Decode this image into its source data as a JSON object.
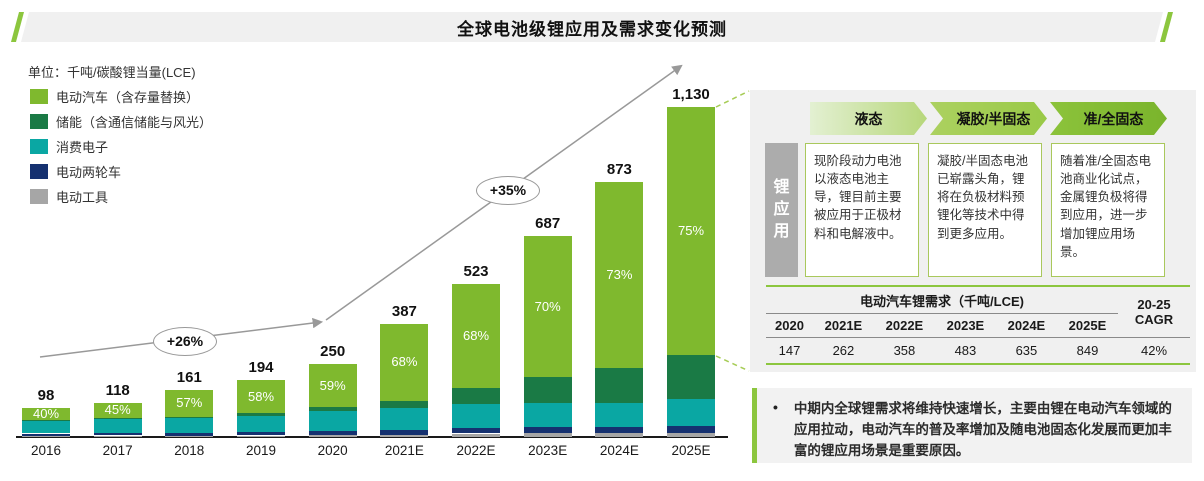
{
  "title": "全球电池级锂应用及需求变化预测",
  "unit_label": "单位：千吨/碳酸锂当量(LCE)",
  "colors": {
    "accent_green": "#8CC63E",
    "arrow_gray": "#999999",
    "panel_gray": "#F0F0F0",
    "ev": "#7FB92E",
    "storage": "#1A7A45",
    "consumer": "#0AA7A3",
    "two_wheeler": "#153170",
    "tools": "#A6A6A6"
  },
  "legend": [
    {
      "label": "电动汽车（含存量替换）",
      "color": "#7FB92E"
    },
    {
      "label": "储能（含通信储能与风光）",
      "color": "#1A7A45"
    },
    {
      "label": "消费电子",
      "color": "#0AA7A3"
    },
    {
      "label": "电动两轮车",
      "color": "#153170"
    },
    {
      "label": "电动工具",
      "color": "#A6A6A6"
    }
  ],
  "chart_data": {
    "type": "bar",
    "stacked": true,
    "title": "全球电池级锂应用及需求变化预测",
    "ylabel": "千吨/碳酸锂当量(LCE)",
    "ylim": [
      0,
      1130
    ],
    "grid": false,
    "categories": [
      "2016",
      "2017",
      "2018",
      "2019",
      "2020",
      "2021E",
      "2022E",
      "2023E",
      "2024E",
      "2025E"
    ],
    "totals": [
      98,
      118,
      161,
      194,
      250,
      387,
      523,
      687,
      873,
      1130
    ],
    "total_labels": [
      "98",
      "118",
      "161",
      "194",
      "250",
      "387",
      "523",
      "687",
      "873",
      "1,130"
    ],
    "ev_share_labels": [
      "40%",
      "45%",
      "57%",
      "58%",
      "59%",
      "68%",
      "68%",
      "70%",
      "73%",
      "75%"
    ],
    "series_note": "series listed bottom-to-top of stack; non-EV values estimated from pixels",
    "series": [
      {
        "name": "电动工具",
        "color": "#A6A6A6",
        "values": [
          5,
          5,
          4,
          5,
          7,
          8,
          12,
          13,
          13,
          15
        ]
      },
      {
        "name": "电动两轮车",
        "color": "#153170",
        "values": [
          7,
          8,
          9,
          11,
          13,
          16,
          20,
          21,
          21,
          23
        ]
      },
      {
        "name": "消费电子",
        "color": "#0AA7A3",
        "values": [
          45,
          49,
          52,
          57,
          68,
          75,
          80,
          82,
          84,
          92
        ]
      },
      {
        "name": "储能（含通信储能与风光）",
        "color": "#1A7A45",
        "values": [
          2,
          3,
          4,
          8,
          14,
          25,
          55,
          90,
          118,
          152
        ]
      },
      {
        "name": "电动汽车（含存量替换）",
        "color": "#7FB92E",
        "values": [
          39,
          53,
          92,
          113,
          148,
          263,
          356,
          481,
          637,
          848
        ]
      }
    ],
    "growth_badges": [
      "+26%",
      "+35%"
    ]
  },
  "right_panel": {
    "side_label": "锂应用",
    "stages": [
      {
        "label": "液态"
      },
      {
        "label": "凝胶/半固态"
      },
      {
        "label": "准/全固态"
      }
    ],
    "stage_descriptions": [
      "现阶段动力电池以液态电池主导，锂目前主要被应用于正极材料和电解液中。",
      "凝胶/半固态电池已崭露头角，锂将在负极材料预锂化等技术中得到更多应用。",
      "随着准/全固态电池商业化试点，金属锂负极将得到应用，进一步增加锂应用场景。"
    ],
    "table": {
      "title": "电动汽车锂需求（千吨/LCE)",
      "cagr_line1": "20-25",
      "cagr_line2": "CAGR",
      "years": [
        "2020",
        "2021E",
        "2022E",
        "2023E",
        "2024E",
        "2025E"
      ],
      "values": [
        "147",
        "262",
        "358",
        "483",
        "635",
        "849"
      ],
      "cagr_value": "42%"
    },
    "note": {
      "bullet": "•",
      "text": "中期内全球锂需求将维持快速增长，主要由锂在电动汽车领域的应用拉动，电动汽车的普及率增加及随电池固态化发展而更加丰富的锂应用场景是重要原因。"
    }
  }
}
